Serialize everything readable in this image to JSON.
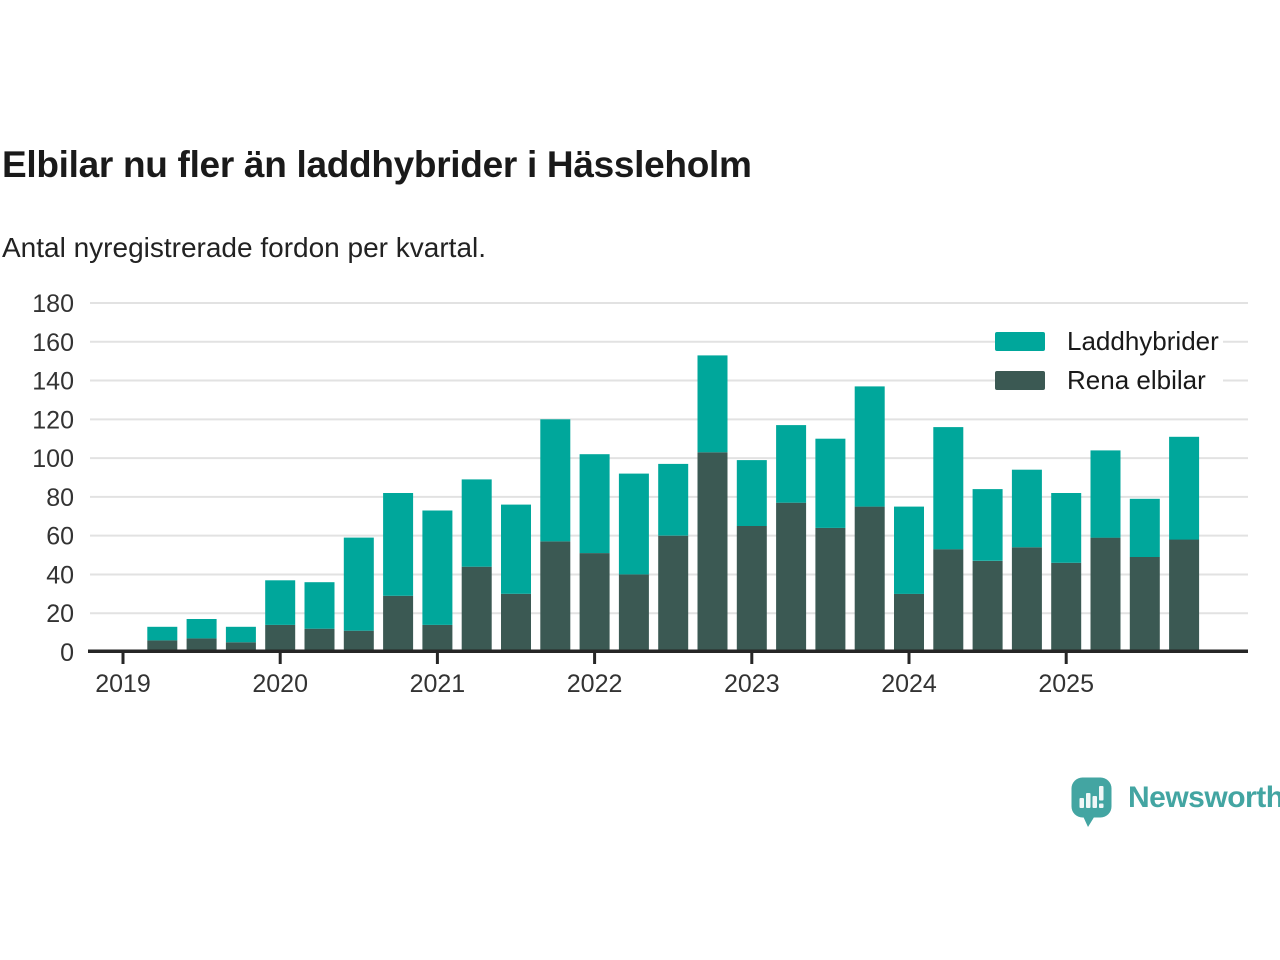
{
  "header": {
    "title": "Elbilar nu fler än laddhybrider i Hässleholm",
    "subtitle": "Antal nyregistrerade fordon per kvartal."
  },
  "footer": {
    "brand": "Newsworthy",
    "brand_color": "#43a5a2"
  },
  "chart_data": {
    "type": "bar",
    "stacked": true,
    "title": "Elbilar nu fler än laddhybrider i Hässleholm",
    "subtitle": "Antal nyregistrerade fordon per kvartal.",
    "categories": [
      "2019 Q2",
      "2019 Q3",
      "2019 Q4",
      "2020 Q1",
      "2020 Q2",
      "2020 Q3",
      "2020 Q4",
      "2021 Q1",
      "2021 Q2",
      "2021 Q3",
      "2021 Q4",
      "2022 Q1",
      "2022 Q2",
      "2022 Q3",
      "2022 Q4",
      "2023 Q1",
      "2023 Q2",
      "2023 Q3",
      "2023 Q4",
      "2024 Q1",
      "2024 Q2",
      "2024 Q3",
      "2024 Q4",
      "2025 Q1",
      "2025 Q2",
      "2025 Q3",
      "2025 Q4"
    ],
    "series": [
      {
        "name": "Laddhybrider",
        "color": "#00a79b",
        "values": [
          7,
          10,
          8,
          23,
          24,
          48,
          53,
          59,
          45,
          46,
          63,
          51,
          52,
          37,
          50,
          34,
          40,
          46,
          62,
          45,
          63,
          37,
          40,
          36,
          45,
          30,
          53
        ]
      },
      {
        "name": "Rena elbilar",
        "color": "#3b5953",
        "values": [
          6,
          7,
          5,
          14,
          12,
          11,
          29,
          14,
          44,
          30,
          57,
          51,
          40,
          60,
          103,
          65,
          77,
          64,
          75,
          30,
          53,
          47,
          54,
          46,
          59,
          49,
          58
        ]
      }
    ],
    "stack_order_bottom_to_top": [
      "Rena elbilar",
      "Laddhybrider"
    ],
    "ylim": [
      0,
      180
    ],
    "yticks": [
      0,
      20,
      40,
      60,
      80,
      100,
      120,
      140,
      160,
      180
    ],
    "x_year_ticks": [
      "2019",
      "2020",
      "2021",
      "2022",
      "2023",
      "2024",
      "2025"
    ],
    "grid": true,
    "grid_color": "#e2e2e2",
    "axis_color": "#262626",
    "legend_position": "top-right"
  }
}
